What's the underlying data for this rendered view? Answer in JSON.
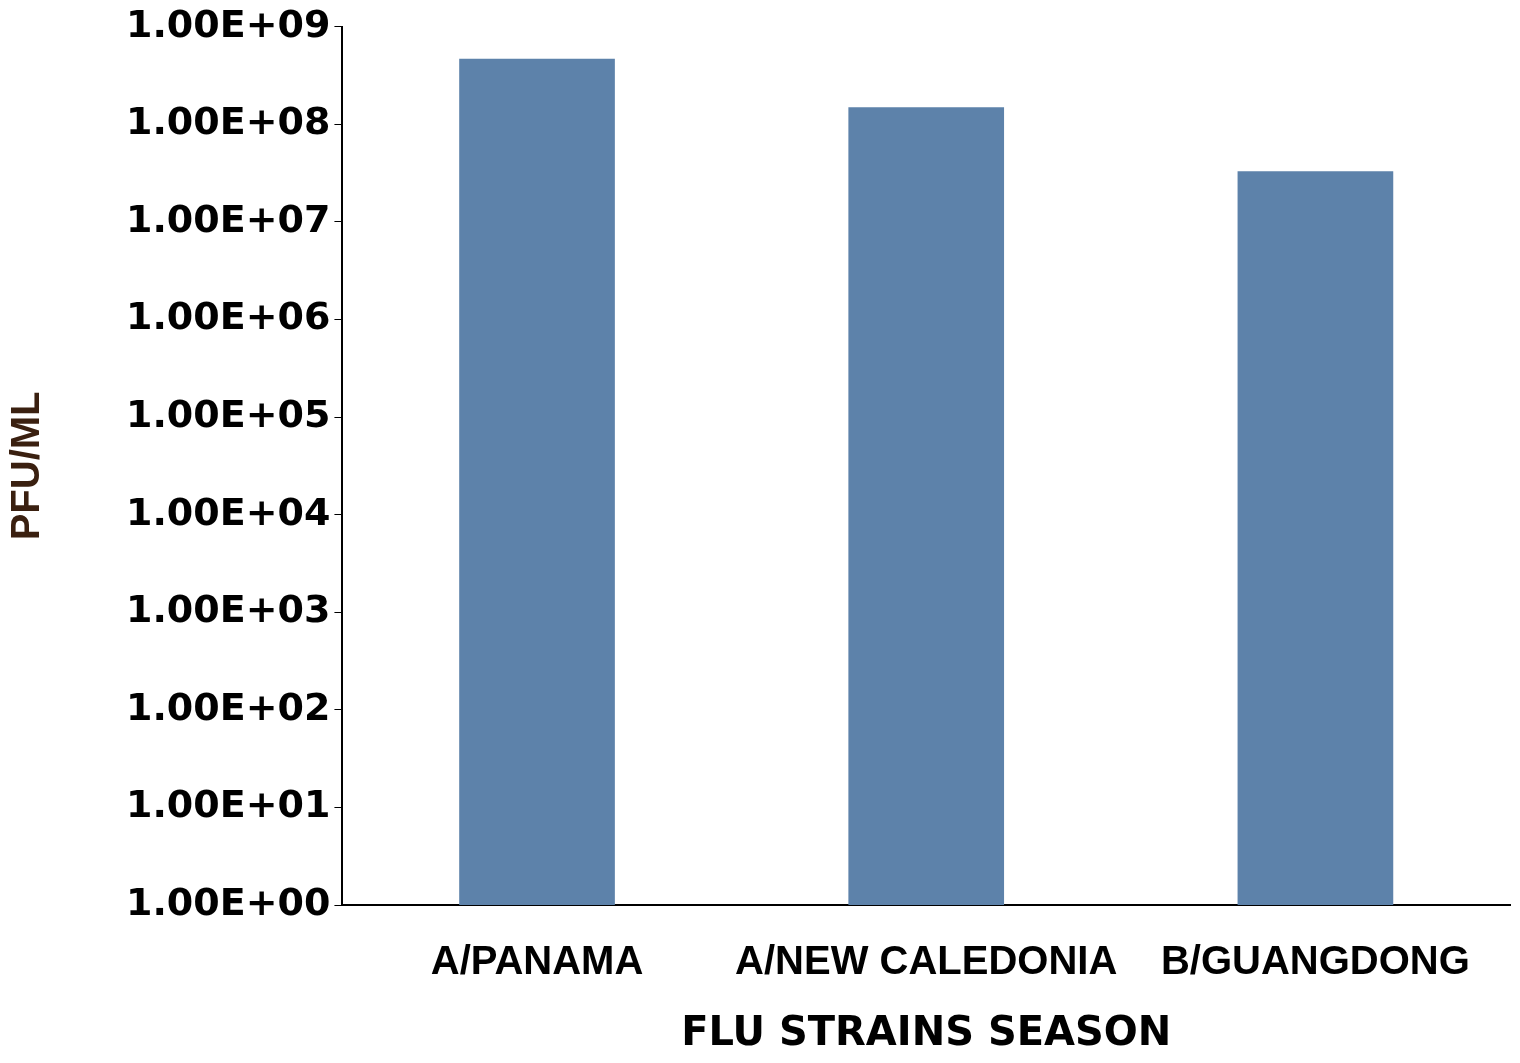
{
  "chart_data": {
    "type": "bar",
    "xlabel": "FLU STRAINS SEASON",
    "ylabel": "PFU/ML",
    "categories": [
      "A/PANAMA",
      "A/NEW CALEDONIA",
      "B/GUANGDONG"
    ],
    "values": [
      470000000,
      150000000,
      33000000
    ],
    "color": "#5d82aa",
    "log": true,
    "ylim": [
      1,
      1000000000
    ],
    "yticks": [
      {
        "value": 1,
        "label": "1.00E+00"
      },
      {
        "value": 10,
        "label": "1.00E+01"
      },
      {
        "value": 100,
        "label": "1.00E+02"
      },
      {
        "value": 1000,
        "label": "1.00E+03"
      },
      {
        "value": 10000,
        "label": "1.00E+04"
      },
      {
        "value": 100000,
        "label": "1.00E+05"
      },
      {
        "value": 1000000,
        "label": "1.00E+06"
      },
      {
        "value": 10000000,
        "label": "1.00E+07"
      },
      {
        "value": 100000000,
        "label": "1.00E+08"
      },
      {
        "value": 1000000000,
        "label": "1.00E+09"
      }
    ],
    "grid": false,
    "legend": false
  }
}
